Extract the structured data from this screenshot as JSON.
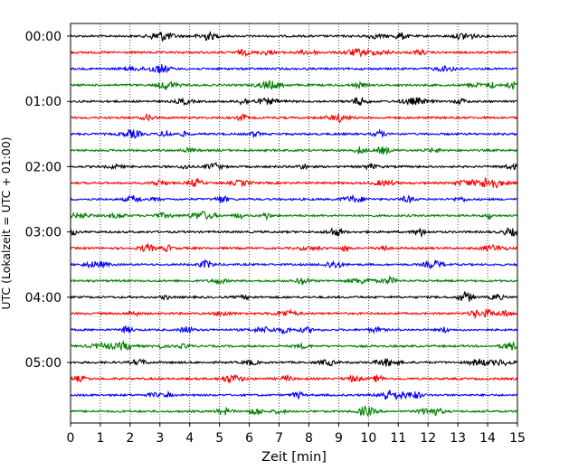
{
  "chart_data": {
    "type": "line",
    "title": "",
    "xlabel": "Zeit  [min]",
    "ylabel": "UTC (Lokalzeit = UTC + 01:00)",
    "xlim": [
      0,
      15
    ],
    "xticks": [
      "0",
      "1",
      "2",
      "3",
      "4",
      "5",
      "6",
      "7",
      "8",
      "9",
      "10",
      "11",
      "12",
      "13",
      "14",
      "15"
    ],
    "yticks": [
      "00:00",
      "01:00",
      "02:00",
      "03:00",
      "04:00",
      "05:00"
    ],
    "grid": "vertical dotted",
    "trace_interval_min": 15,
    "trace_colors": [
      "#000000",
      "#ff0000",
      "#0000ff",
      "#008000"
    ],
    "traces": [
      {
        "start": "00:00"
      },
      {
        "start": "00:15"
      },
      {
        "start": "00:30"
      },
      {
        "start": "00:45"
      },
      {
        "start": "01:00"
      },
      {
        "start": "01:15"
      },
      {
        "start": "01:30"
      },
      {
        "start": "01:45"
      },
      {
        "start": "02:00"
      },
      {
        "start": "02:15"
      },
      {
        "start": "02:30"
      },
      {
        "start": "02:45"
      },
      {
        "start": "03:00"
      },
      {
        "start": "03:15"
      },
      {
        "start": "03:30"
      },
      {
        "start": "03:45"
      },
      {
        "start": "04:00"
      },
      {
        "start": "04:15"
      },
      {
        "start": "04:30"
      },
      {
        "start": "04:45"
      },
      {
        "start": "05:00"
      },
      {
        "start": "05:15"
      },
      {
        "start": "05:30"
      },
      {
        "start": "05:45"
      }
    ]
  }
}
